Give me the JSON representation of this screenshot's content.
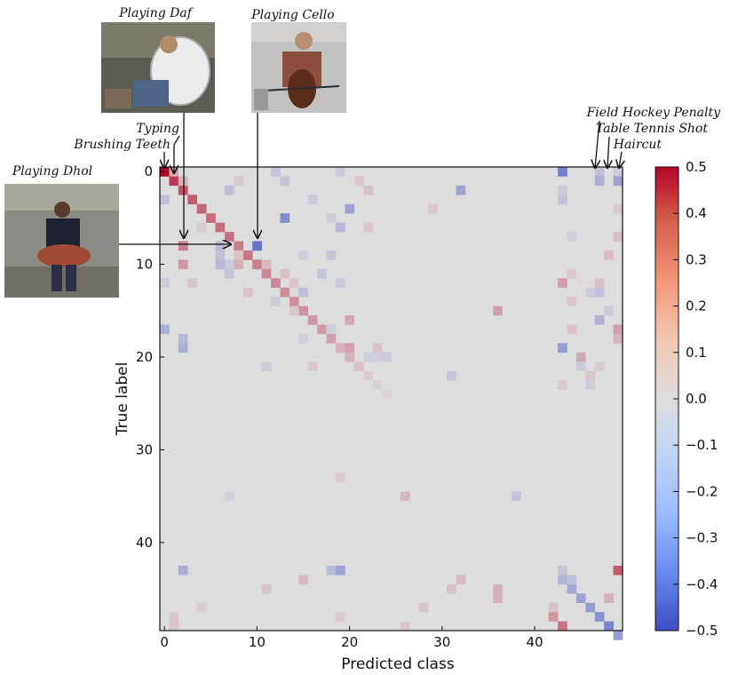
{
  "chart_data": {
    "type": "heatmap",
    "title": "",
    "xlabel": "Predicted class",
    "ylabel": "True label",
    "n": 50,
    "background_value": 0.0,
    "xticks": [
      0,
      10,
      20,
      30,
      40
    ],
    "yticks": [
      0,
      10,
      20,
      30,
      40
    ],
    "colorbar": {
      "min": -0.5,
      "max": 0.5,
      "ticks": [
        "0.5",
        "0.4",
        "0.3",
        "0.2",
        "0.1",
        "0.0",
        "−0.1",
        "−0.2",
        "−0.3",
        "−0.4",
        "−0.5"
      ],
      "colormap": "coolwarm",
      "low_color": "#3b4cc0",
      "mid_color": "#dddddd",
      "high_color": "#b40426"
    },
    "cells": [
      [
        0,
        0,
        0.5
      ],
      [
        1,
        1,
        0.38
      ],
      [
        2,
        2,
        0.32
      ],
      [
        3,
        3,
        0.3
      ],
      [
        4,
        4,
        0.28
      ],
      [
        5,
        5,
        0.26
      ],
      [
        6,
        6,
        0.26
      ],
      [
        7,
        7,
        0.25
      ],
      [
        8,
        8,
        0.22
      ],
      [
        9,
        9,
        0.24
      ],
      [
        10,
        10,
        0.22
      ],
      [
        11,
        11,
        0.2
      ],
      [
        12,
        12,
        0.2
      ],
      [
        13,
        13,
        0.18
      ],
      [
        14,
        14,
        0.18
      ],
      [
        15,
        15,
        0.17
      ],
      [
        16,
        16,
        0.16
      ],
      [
        17,
        17,
        0.15
      ],
      [
        18,
        18,
        0.14
      ],
      [
        19,
        19,
        0.12
      ],
      [
        20,
        20,
        0.1
      ],
      [
        21,
        21,
        0.06
      ],
      [
        22,
        22,
        0.04
      ],
      [
        23,
        23,
        0.03
      ],
      [
        24,
        24,
        0.02
      ],
      [
        44,
        43,
        -0.14
      ],
      [
        45,
        44,
        -0.18
      ],
      [
        46,
        45,
        -0.2
      ],
      [
        47,
        46,
        -0.22
      ],
      [
        48,
        47,
        -0.26
      ],
      [
        49,
        48,
        -0.3
      ],
      [
        50,
        49,
        -0.22
      ],
      [
        0,
        1,
        0.12
      ],
      [
        0,
        12,
        -0.08
      ],
      [
        0,
        19,
        -0.06
      ],
      [
        0,
        43,
        -0.32
      ],
      [
        0,
        47,
        -0.1
      ],
      [
        0,
        49,
        -0.06
      ],
      [
        1,
        2,
        0.1
      ],
      [
        1,
        8,
        0.05
      ],
      [
        1,
        13,
        -0.08
      ],
      [
        1,
        21,
        0.05
      ],
      [
        1,
        47,
        -0.16
      ],
      [
        1,
        49,
        -0.2
      ],
      [
        2,
        7,
        -0.1
      ],
      [
        2,
        22,
        0.06
      ],
      [
        2,
        32,
        -0.2
      ],
      [
        2,
        43,
        -0.06
      ],
      [
        3,
        0,
        -0.1
      ],
      [
        3,
        16,
        -0.06
      ],
      [
        3,
        43,
        -0.08
      ],
      [
        4,
        20,
        -0.2
      ],
      [
        4,
        29,
        0.05
      ],
      [
        4,
        49,
        0.05
      ],
      [
        5,
        13,
        -0.28
      ],
      [
        5,
        18,
        -0.06
      ],
      [
        6,
        4,
        0.04
      ],
      [
        6,
        19,
        -0.12
      ],
      [
        6,
        22,
        0.05
      ],
      [
        7,
        44,
        -0.05
      ],
      [
        7,
        49,
        0.07
      ],
      [
        8,
        2,
        0.22
      ],
      [
        8,
        6,
        -0.14
      ],
      [
        8,
        10,
        -0.36
      ],
      [
        8,
        6,
        -0.12
      ],
      [
        9,
        6,
        -0.1
      ],
      [
        9,
        8,
        0.06
      ],
      [
        9,
        15,
        -0.05
      ],
      [
        9,
        18,
        -0.08
      ],
      [
        9,
        48,
        0.07
      ],
      [
        10,
        2,
        0.16
      ],
      [
        10,
        6,
        -0.12
      ],
      [
        10,
        7,
        -0.06
      ],
      [
        10,
        8,
        0.1
      ],
      [
        10,
        11,
        0.08
      ],
      [
        11,
        7,
        -0.08
      ],
      [
        11,
        13,
        0.06
      ],
      [
        11,
        17,
        -0.08
      ],
      [
        11,
        44,
        0.05
      ],
      [
        12,
        0,
        -0.06
      ],
      [
        12,
        3,
        0.05
      ],
      [
        12,
        14,
        0.05
      ],
      [
        12,
        19,
        -0.06
      ],
      [
        12,
        43,
        0.14
      ],
      [
        12,
        47,
        0.06
      ],
      [
        13,
        9,
        0.06
      ],
      [
        13,
        15,
        -0.1
      ],
      [
        13,
        46,
        -0.06
      ],
      [
        13,
        47,
        -0.1
      ],
      [
        14,
        12,
        -0.06
      ],
      [
        14,
        44,
        0.05
      ],
      [
        15,
        14,
        0.06
      ],
      [
        15,
        36,
        0.14
      ],
      [
        15,
        48,
        -0.06
      ],
      [
        16,
        20,
        0.12
      ],
      [
        16,
        47,
        -0.14
      ],
      [
        17,
        0,
        -0.16
      ],
      [
        17,
        18,
        -0.05
      ],
      [
        17,
        44,
        0.06
      ],
      [
        17,
        49,
        0.14
      ],
      [
        18,
        2,
        -0.12
      ],
      [
        18,
        15,
        -0.05
      ],
      [
        18,
        49,
        0.1
      ],
      [
        19,
        2,
        -0.16
      ],
      [
        19,
        19,
        0.1
      ],
      [
        19,
        20,
        0.14
      ],
      [
        19,
        23,
        0.06
      ],
      [
        19,
        43,
        -0.22
      ],
      [
        20,
        20,
        0.1
      ],
      [
        20,
        22,
        -0.05
      ],
      [
        20,
        23,
        -0.05
      ],
      [
        20,
        24,
        -0.06
      ],
      [
        20,
        45,
        0.12
      ],
      [
        21,
        11,
        -0.06
      ],
      [
        21,
        16,
        0.05
      ],
      [
        21,
        45,
        -0.06
      ],
      [
        21,
        47,
        0.04
      ],
      [
        22,
        31,
        -0.08
      ],
      [
        22,
        46,
        0.05
      ],
      [
        23,
        43,
        0.04
      ],
      [
        23,
        46,
        -0.05
      ],
      [
        33,
        19,
        0.04
      ],
      [
        35,
        7,
        -0.04
      ],
      [
        35,
        26,
        0.08
      ],
      [
        35,
        38,
        -0.08
      ],
      [
        43,
        2,
        -0.16
      ],
      [
        43,
        18,
        -0.12
      ],
      [
        43,
        19,
        -0.2
      ],
      [
        43,
        43,
        -0.08
      ],
      [
        43,
        49,
        0.3
      ],
      [
        44,
        15,
        0.08
      ],
      [
        44,
        32,
        0.08
      ],
      [
        44,
        44,
        -0.1
      ],
      [
        45,
        11,
        0.06
      ],
      [
        45,
        31,
        0.06
      ],
      [
        45,
        36,
        0.1
      ],
      [
        46,
        36,
        0.1
      ],
      [
        46,
        48,
        0.1
      ],
      [
        47,
        4,
        0.04
      ],
      [
        47,
        28,
        0.06
      ],
      [
        47,
        42,
        0.06
      ],
      [
        48,
        1,
        0.05
      ],
      [
        48,
        19,
        0.04
      ],
      [
        48,
        42,
        0.16
      ],
      [
        49,
        1,
        0.06
      ],
      [
        49,
        26,
        0.05
      ],
      [
        49,
        43,
        0.24
      ]
    ]
  },
  "annotations": {
    "playing_daf": "Playing Daf",
    "playing_cello": "Playing Cello",
    "typing": "Typing",
    "brushing_teeth": "Brushing Teeth",
    "playing_dhol": "Playing Dhol",
    "field_hockey_penalty": "Field Hockey Penalty",
    "table_tennis_shot": "Table Tennis Shot",
    "haircut": "Haircut"
  }
}
